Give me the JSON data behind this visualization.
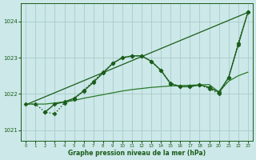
{
  "bg_color": "#cce8e8",
  "grid_color": "#aacccc",
  "line_color": "#1a5c1a",
  "xlabel": "Graphe pression niveau de la mer (hPa)",
  "xlim": [
    -0.5,
    23.5
  ],
  "ylim": [
    1020.7,
    1024.5
  ],
  "yticks": [
    1021,
    1022,
    1023,
    1024
  ],
  "xticks": [
    0,
    1,
    2,
    3,
    4,
    5,
    6,
    7,
    8,
    9,
    10,
    11,
    12,
    13,
    14,
    15,
    16,
    17,
    18,
    19,
    20,
    21,
    22,
    23
  ],
  "series": [
    {
      "x": [
        0,
        23
      ],
      "y": [
        1021.7,
        1024.25
      ],
      "style": "solid",
      "marker": null,
      "markersize": 0,
      "linewidth": 0.9,
      "color": "#1a5c1a"
    },
    {
      "x": [
        0,
        1,
        2,
        3,
        4,
        5,
        6,
        7,
        8,
        9,
        10,
        11,
        12,
        13,
        14,
        15,
        16,
        17,
        18,
        19,
        20,
        21,
        22,
        23
      ],
      "y": [
        1021.72,
        1021.72,
        1021.72,
        1021.75,
        1021.78,
        1021.82,
        1021.88,
        1021.93,
        1021.98,
        1022.03,
        1022.08,
        1022.12,
        1022.15,
        1022.18,
        1022.2,
        1022.22,
        1022.23,
        1022.24,
        1022.25,
        1022.26,
        1022.05,
        1022.35,
        1022.5,
        1022.6
      ],
      "style": "solid",
      "marker": null,
      "markersize": 0,
      "linewidth": 0.9,
      "color": "#2a7a2a"
    },
    {
      "x": [
        0,
        1,
        2,
        3,
        4,
        5,
        6,
        7,
        8,
        9,
        10,
        11,
        12,
        13,
        14,
        15,
        16,
        17,
        18,
        19,
        20,
        21,
        22,
        23
      ],
      "y": [
        1021.72,
        1021.72,
        1021.5,
        1021.45,
        1021.75,
        1021.85,
        1022.1,
        1022.35,
        1022.6,
        1022.85,
        1023.0,
        1023.05,
        1023.05,
        1022.9,
        1022.65,
        1022.3,
        1022.2,
        1022.2,
        1022.25,
        1022.15,
        1022.0,
        1022.45,
        1023.4,
        1024.25
      ],
      "style": "dotted",
      "marker": "D",
      "markersize": 2.5,
      "linewidth": 1.0,
      "color": "#1a5c1a"
    },
    {
      "x": [
        2,
        3,
        4,
        5,
        6,
        7,
        8,
        9,
        10,
        11,
        12,
        13,
        14,
        15,
        16,
        17,
        18,
        19,
        20,
        21,
        22,
        23
      ],
      "y": [
        1021.5,
        1021.72,
        1021.78,
        1021.88,
        1022.08,
        1022.32,
        1022.58,
        1022.84,
        1023.0,
        1023.05,
        1023.05,
        1022.9,
        1022.65,
        1022.28,
        1022.2,
        1022.2,
        1022.25,
        1022.18,
        1022.05,
        1022.45,
        1023.35,
        1024.25
      ],
      "style": "solid",
      "marker": "D",
      "markersize": 2.5,
      "linewidth": 1.0,
      "color": "#1a5c1a"
    }
  ]
}
